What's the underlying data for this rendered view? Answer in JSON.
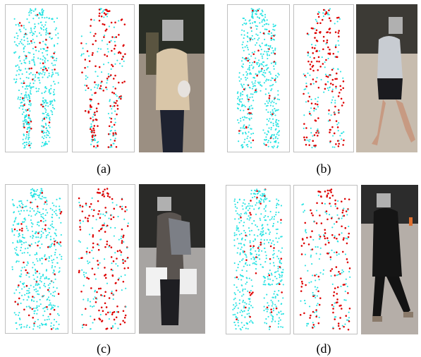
{
  "captions": {
    "a": "(a)",
    "b": "(b)",
    "c": "(c)",
    "d": "(d)"
  },
  "colors": {
    "cloud_cyan": "#29e3e3",
    "keypoint_red": "#dd0000",
    "panel_border": "#bfbfbf"
  }
}
